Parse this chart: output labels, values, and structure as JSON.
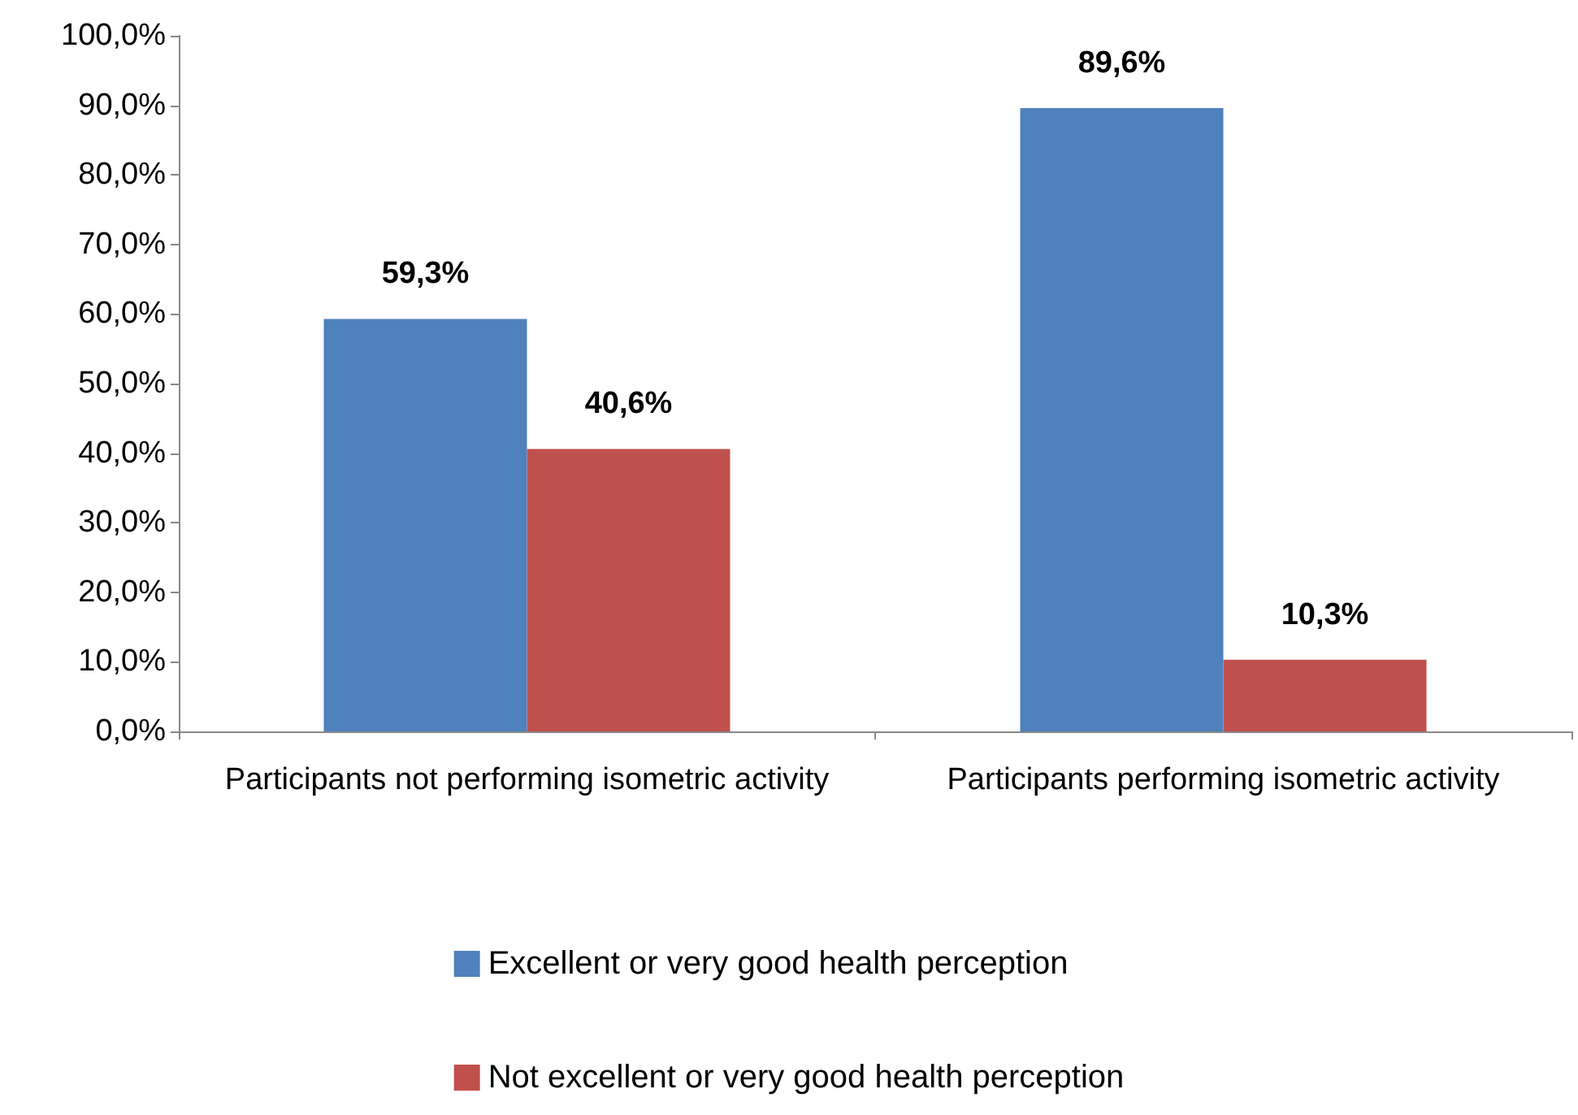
{
  "chart_data": {
    "type": "bar",
    "categories": [
      "Participants not performing isometric activity",
      "Participants performing isometric activity"
    ],
    "series": [
      {
        "name": "Excellent or very good health perception",
        "color": "#4f81bd",
        "values": [
          59.3,
          89.6
        ],
        "value_labels": [
          "59,3%",
          "89,6%"
        ]
      },
      {
        "name": "Not excellent or very good health perception",
        "color": "#c0504d",
        "values": [
          40.6,
          10.3
        ],
        "value_labels": [
          "40,6%",
          "10,3%"
        ]
      }
    ],
    "ylim": [
      0,
      100
    ],
    "yticks": [
      {
        "value": 0,
        "label": "0,0%"
      },
      {
        "value": 10,
        "label": "10,0%"
      },
      {
        "value": 20,
        "label": "20,0%"
      },
      {
        "value": 30,
        "label": "30,0%"
      },
      {
        "value": 40,
        "label": "40,0%"
      },
      {
        "value": 50,
        "label": "50,0%"
      },
      {
        "value": 60,
        "label": "60,0%"
      },
      {
        "value": 70,
        "label": "70,0%"
      },
      {
        "value": 80,
        "label": "80,0%"
      },
      {
        "value": 90,
        "label": "90,0%"
      },
      {
        "value": 100,
        "label": "100,0%"
      }
    ],
    "grid": false,
    "legend": "bottom"
  }
}
